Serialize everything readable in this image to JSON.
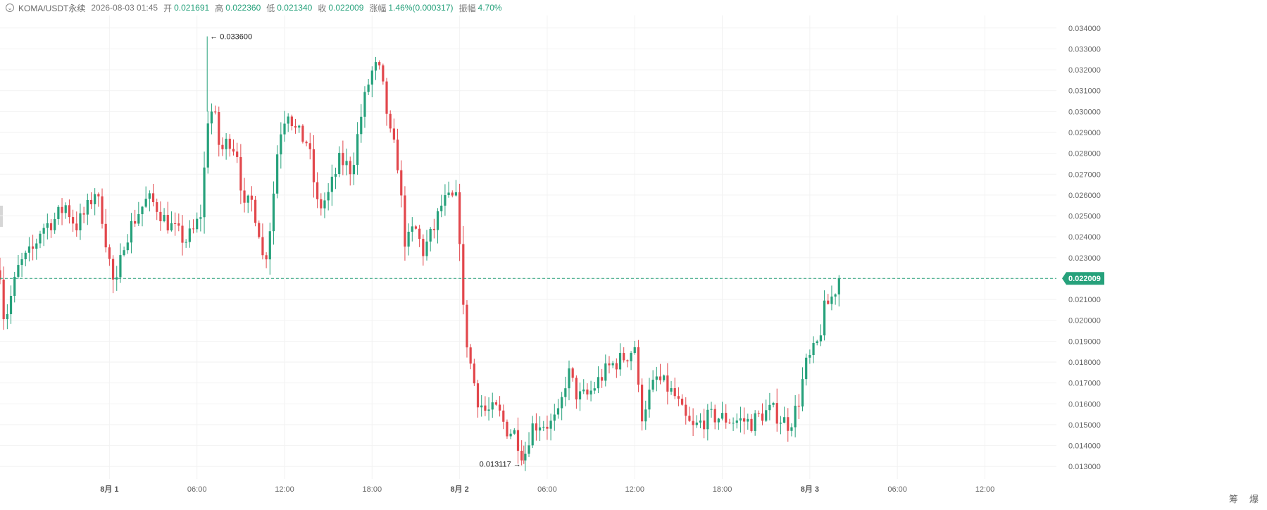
{
  "header": {
    "symbol": "KOMA/USDT永续",
    "timestamp": "2026-08-03 01:45",
    "open_label": "开",
    "open": "0.021691",
    "high_label": "高",
    "high": "0.022360",
    "low_label": "低",
    "low": "0.021340",
    "close_label": "收",
    "close": "0.022009",
    "change_label": "涨幅",
    "change": "1.46%(0.000317)",
    "amplitude_label": "振幅",
    "amplitude": "4.70%",
    "collapse_icon": "chevron-down-icon"
  },
  "corner_labels": "筹 爆",
  "colors": {
    "up": "#26a17b",
    "down": "#e2474c",
    "grid": "#f2f2f2",
    "price_line": "#26a17b"
  },
  "chart_data": {
    "type": "candlestick",
    "title": "",
    "y_ticks": [
      "0.013000",
      "0.014000",
      "0.015000",
      "0.016000",
      "0.017000",
      "0.018000",
      "0.019000",
      "0.020000",
      "0.021000",
      "0.022000",
      "0.023000",
      "0.024000",
      "0.025000",
      "0.026000",
      "0.027000",
      "0.028000",
      "0.029000",
      "0.030000",
      "0.031000",
      "0.032000",
      "0.033000",
      "0.034000"
    ],
    "ylim": [
      0.0124,
      0.0346
    ],
    "x_ticks": [
      {
        "label": "8月 1",
        "hour": 0,
        "bold": true
      },
      {
        "label": "06:00",
        "hour": 6
      },
      {
        "label": "12:00",
        "hour": 12
      },
      {
        "label": "18:00",
        "hour": 18
      },
      {
        "label": "8月 2",
        "hour": 24,
        "bold": true
      },
      {
        "label": "06:00",
        "hour": 30
      },
      {
        "label": "12:00",
        "hour": 36
      },
      {
        "label": "18:00",
        "hour": 42
      },
      {
        "label": "8月 3",
        "hour": 48,
        "bold": true
      },
      {
        "label": "06:00",
        "hour": 54
      },
      {
        "label": "12:00",
        "hour": 60
      }
    ],
    "xlim_hours": [
      -7.5,
      64.9
    ],
    "last_price": "0.022009",
    "last_price_value": 0.022009,
    "max_label": "0.033600",
    "max_value": 0.0336,
    "max_hour": 0.0,
    "min_label": "0.013117",
    "min_value": 0.013117,
    "min_hour": 0.0,
    "waypoints": [
      [
        -7.5,
        0.0224
      ],
      [
        -7.2,
        0.0199
      ],
      [
        -6.8,
        0.021
      ],
      [
        -6.2,
        0.0226
      ],
      [
        -5.2,
        0.0234
      ],
      [
        -4.7,
        0.0244
      ],
      [
        -3.8,
        0.0248
      ],
      [
        -3.0,
        0.0255
      ],
      [
        -2.3,
        0.0245
      ],
      [
        -1.6,
        0.0252
      ],
      [
        -1.0,
        0.0262
      ],
      [
        -0.5,
        0.025
      ],
      [
        -0.1,
        0.0232
      ],
      [
        0.4,
        0.0213
      ],
      [
        1.0,
        0.0238
      ],
      [
        1.4,
        0.0244
      ],
      [
        2.0,
        0.0252
      ],
      [
        2.6,
        0.0258
      ],
      [
        3.2,
        0.0255
      ],
      [
        3.8,
        0.0248
      ],
      [
        4.5,
        0.0243
      ],
      [
        5.2,
        0.0238
      ],
      [
        5.8,
        0.0243
      ],
      [
        6.3,
        0.0252
      ],
      [
        6.8,
        0.0302
      ],
      [
        7.2,
        0.0298
      ],
      [
        7.6,
        0.028
      ],
      [
        8.2,
        0.0287
      ],
      [
        8.8,
        0.028
      ],
      [
        9.2,
        0.0252
      ],
      [
        9.7,
        0.0258
      ],
      [
        10.2,
        0.0246
      ],
      [
        10.6,
        0.0225
      ],
      [
        11.1,
        0.025
      ],
      [
        11.6,
        0.0288
      ],
      [
        12.2,
        0.0302
      ],
      [
        12.8,
        0.029
      ],
      [
        13.6,
        0.0285
      ],
      [
        14.3,
        0.0253
      ],
      [
        15.0,
        0.026
      ],
      [
        15.8,
        0.0277
      ],
      [
        16.6,
        0.0272
      ],
      [
        17.3,
        0.03
      ],
      [
        17.9,
        0.0318
      ],
      [
        18.4,
        0.0322
      ],
      [
        18.8,
        0.0309
      ],
      [
        19.3,
        0.0286
      ],
      [
        19.7,
        0.0279
      ],
      [
        20.3,
        0.0235
      ],
      [
        20.9,
        0.0245
      ],
      [
        21.5,
        0.0233
      ],
      [
        22.2,
        0.0243
      ],
      [
        22.8,
        0.0256
      ],
      [
        23.4,
        0.0258
      ],
      [
        23.9,
        0.0257
      ],
      [
        24.2,
        0.0207
      ],
      [
        24.6,
        0.0184
      ],
      [
        25.2,
        0.0163
      ],
      [
        25.8,
        0.0156
      ],
      [
        26.6,
        0.0157
      ],
      [
        27.2,
        0.0148
      ],
      [
        27.8,
        0.0146
      ],
      [
        28.4,
        0.0134
      ],
      [
        28.9,
        0.0149
      ],
      [
        29.5,
        0.0151
      ],
      [
        30.2,
        0.015
      ],
      [
        30.8,
        0.0154
      ],
      [
        31.4,
        0.0176
      ],
      [
        32.1,
        0.0163
      ],
      [
        32.8,
        0.0164
      ],
      [
        33.6,
        0.0172
      ],
      [
        34.3,
        0.0178
      ],
      [
        35.0,
        0.0181
      ],
      [
        35.6,
        0.0184
      ],
      [
        36.0,
        0.0188
      ],
      [
        36.4,
        0.0153
      ],
      [
        36.9,
        0.0163
      ],
      [
        37.5,
        0.0172
      ],
      [
        38.2,
        0.0168
      ],
      [
        38.8,
        0.0163
      ],
      [
        39.4,
        0.0153
      ],
      [
        40.0,
        0.0148
      ],
      [
        40.7,
        0.0152
      ],
      [
        41.4,
        0.0154
      ],
      [
        42.1,
        0.0153
      ],
      [
        42.8,
        0.0152
      ],
      [
        43.4,
        0.0152
      ],
      [
        44.0,
        0.0151
      ],
      [
        44.7,
        0.0155
      ],
      [
        45.4,
        0.0157
      ],
      [
        46.0,
        0.0153
      ],
      [
        46.6,
        0.015
      ],
      [
        47.2,
        0.016
      ],
      [
        47.7,
        0.0178
      ],
      [
        48.2,
        0.0184
      ],
      [
        48.6,
        0.019
      ],
      [
        49.0,
        0.0205
      ],
      [
        49.5,
        0.0211
      ],
      [
        50.0,
        0.0219
      ],
      [
        50.2,
        0.022
      ]
    ]
  }
}
